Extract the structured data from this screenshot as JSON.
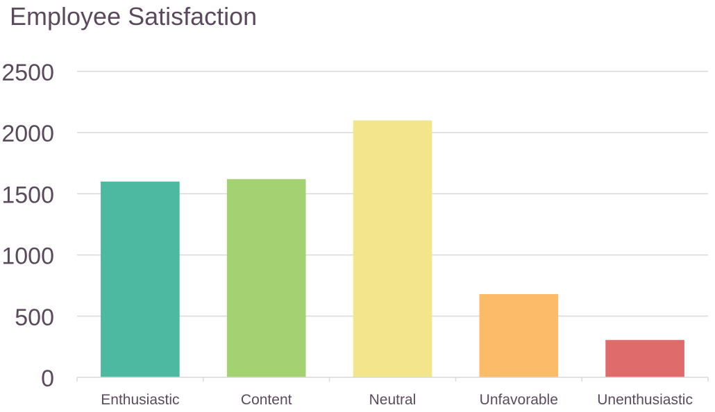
{
  "chart_data": {
    "type": "bar",
    "title": "Employee Satisfaction",
    "categories": [
      "Enthusiastic",
      "Content",
      "Neutral",
      "Unfavorable",
      "Unenthusiastic"
    ],
    "values": [
      1600,
      1620,
      2100,
      680,
      305
    ],
    "bar_colors": [
      "#4cb9a0",
      "#a4d272",
      "#f2e58c",
      "#fcbb68",
      "#e06b6b"
    ],
    "ylim": [
      0,
      2500
    ],
    "yticks": [
      "0",
      "500",
      "1000",
      "1500",
      "2000",
      "2500"
    ],
    "grid": true,
    "legend": "none",
    "xlabel": "",
    "ylabel": ""
  }
}
